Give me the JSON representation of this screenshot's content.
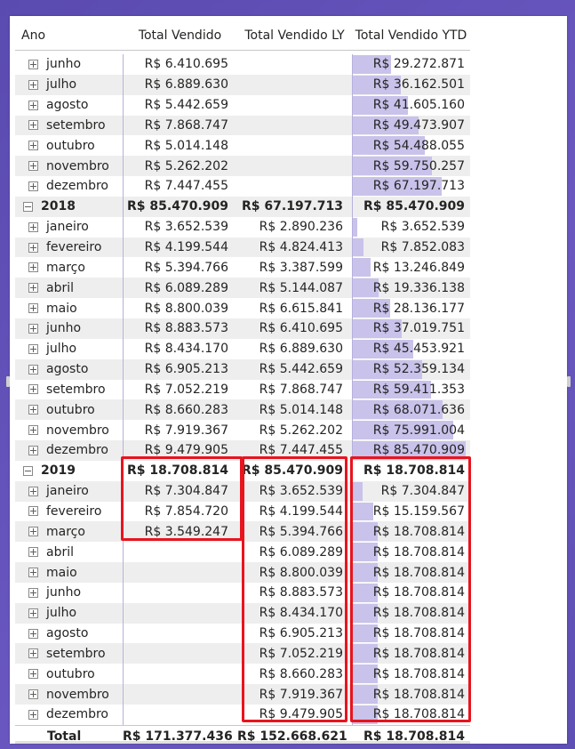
{
  "headers": [
    "Ano",
    "Total Vendido",
    "Total Vendido LY",
    "Total Vendido YTD"
  ],
  "ytd_bar_max": 85470909,
  "rows": [
    {
      "label": "junho",
      "level": 1,
      "tv": "R$ 6.410.695",
      "ly": "",
      "ytd": "R$ 29.272.871",
      "ytd_value": 29272871
    },
    {
      "label": "julho",
      "level": 1,
      "tv": "R$ 6.889.630",
      "ly": "",
      "ytd": "R$ 36.162.501",
      "ytd_value": 36162501
    },
    {
      "label": "agosto",
      "level": 1,
      "tv": "R$ 5.442.659",
      "ly": "",
      "ytd": "R$ 41.605.160",
      "ytd_value": 41605160
    },
    {
      "label": "setembro",
      "level": 1,
      "tv": "R$ 7.868.747",
      "ly": "",
      "ytd": "R$ 49.473.907",
      "ytd_value": 49473907
    },
    {
      "label": "outubro",
      "level": 1,
      "tv": "R$ 5.014.148",
      "ly": "",
      "ytd": "R$ 54.488.055",
      "ytd_value": 54488055
    },
    {
      "label": "novembro",
      "level": 1,
      "tv": "R$ 5.262.202",
      "ly": "",
      "ytd": "R$ 59.750.257",
      "ytd_value": 59750257
    },
    {
      "label": "dezembro",
      "level": 1,
      "tv": "R$ 7.447.455",
      "ly": "",
      "ytd": "R$ 67.197.713",
      "ytd_value": 67197713
    },
    {
      "label": "2018",
      "level": 0,
      "tv": "R$ 85.470.909",
      "ly": "R$ 67.197.713",
      "ytd": "R$ 85.470.909",
      "ytd_value": 0
    },
    {
      "label": "janeiro",
      "level": 1,
      "tv": "R$ 3.652.539",
      "ly": "R$ 2.890.236",
      "ytd": "R$ 3.652.539",
      "ytd_value": 3652539
    },
    {
      "label": "fevereiro",
      "level": 1,
      "tv": "R$ 4.199.544",
      "ly": "R$ 4.824.413",
      "ytd": "R$ 7.852.083",
      "ytd_value": 7852083
    },
    {
      "label": "março",
      "level": 1,
      "tv": "R$ 5.394.766",
      "ly": "R$ 3.387.599",
      "ytd": "R$ 13.246.849",
      "ytd_value": 13246849
    },
    {
      "label": "abril",
      "level": 1,
      "tv": "R$ 6.089.289",
      "ly": "R$ 5.144.087",
      "ytd": "R$ 19.336.138",
      "ytd_value": 19336138
    },
    {
      "label": "maio",
      "level": 1,
      "tv": "R$ 8.800.039",
      "ly": "R$ 6.615.841",
      "ytd": "R$ 28.136.177",
      "ytd_value": 28136177
    },
    {
      "label": "junho",
      "level": 1,
      "tv": "R$ 8.883.573",
      "ly": "R$ 6.410.695",
      "ytd": "R$ 37.019.751",
      "ytd_value": 37019751
    },
    {
      "label": "julho",
      "level": 1,
      "tv": "R$ 8.434.170",
      "ly": "R$ 6.889.630",
      "ytd": "R$ 45.453.921",
      "ytd_value": 45453921
    },
    {
      "label": "agosto",
      "level": 1,
      "tv": "R$ 6.905.213",
      "ly": "R$ 5.442.659",
      "ytd": "R$ 52.359.134",
      "ytd_value": 52359134
    },
    {
      "label": "setembro",
      "level": 1,
      "tv": "R$ 7.052.219",
      "ly": "R$ 7.868.747",
      "ytd": "R$ 59.411.353",
      "ytd_value": 59411353
    },
    {
      "label": "outubro",
      "level": 1,
      "tv": "R$ 8.660.283",
      "ly": "R$ 5.014.148",
      "ytd": "R$ 68.071.636",
      "ytd_value": 68071636
    },
    {
      "label": "novembro",
      "level": 1,
      "tv": "R$ 7.919.367",
      "ly": "R$ 5.262.202",
      "ytd": "R$ 75.991.004",
      "ytd_value": 75991004
    },
    {
      "label": "dezembro",
      "level": 1,
      "tv": "R$ 9.479.905",
      "ly": "R$ 7.447.455",
      "ytd": "R$ 85.470.909",
      "ytd_value": 85470909
    },
    {
      "label": "2019",
      "level": 0,
      "tv": "R$ 18.708.814",
      "ly": "R$ 85.470.909",
      "ytd": "R$ 18.708.814",
      "ytd_value": 0
    },
    {
      "label": "janeiro",
      "level": 1,
      "tv": "R$ 7.304.847",
      "ly": "R$ 3.652.539",
      "ytd": "R$ 7.304.847",
      "ytd_value": 7304847
    },
    {
      "label": "fevereiro",
      "level": 1,
      "tv": "R$ 7.854.720",
      "ly": "R$ 4.199.544",
      "ytd": "R$ 15.159.567",
      "ytd_value": 15159567
    },
    {
      "label": "março",
      "level": 1,
      "tv": "R$ 3.549.247",
      "ly": "R$ 5.394.766",
      "ytd": "R$ 18.708.814",
      "ytd_value": 18708814
    },
    {
      "label": "abril",
      "level": 1,
      "tv": "",
      "ly": "R$ 6.089.289",
      "ytd": "R$ 18.708.814",
      "ytd_value": 18708814
    },
    {
      "label": "maio",
      "level": 1,
      "tv": "",
      "ly": "R$ 8.800.039",
      "ytd": "R$ 18.708.814",
      "ytd_value": 18708814
    },
    {
      "label": "junho",
      "level": 1,
      "tv": "",
      "ly": "R$ 8.883.573",
      "ytd": "R$ 18.708.814",
      "ytd_value": 18708814
    },
    {
      "label": "julho",
      "level": 1,
      "tv": "",
      "ly": "R$ 8.434.170",
      "ytd": "R$ 18.708.814",
      "ytd_value": 18708814
    },
    {
      "label": "agosto",
      "level": 1,
      "tv": "",
      "ly": "R$ 6.905.213",
      "ytd": "R$ 18.708.814",
      "ytd_value": 18708814
    },
    {
      "label": "setembro",
      "level": 1,
      "tv": "",
      "ly": "R$ 7.052.219",
      "ytd": "R$ 18.708.814",
      "ytd_value": 18708814
    },
    {
      "label": "outubro",
      "level": 1,
      "tv": "",
      "ly": "R$ 8.660.283",
      "ytd": "R$ 18.708.814",
      "ytd_value": 18708814
    },
    {
      "label": "novembro",
      "level": 1,
      "tv": "",
      "ly": "R$ 7.919.367",
      "ytd": "R$ 18.708.814",
      "ytd_value": 18708814
    },
    {
      "label": "dezembro",
      "level": 1,
      "tv": "",
      "ly": "R$ 9.479.905",
      "ytd": "R$ 18.708.814",
      "ytd_value": 18708814
    }
  ],
  "total": {
    "label": "Total",
    "tv": "R$ 171.377.436",
    "ly": "R$ 152.668.621",
    "ytd": "R$ 18.708.814"
  },
  "colors": {
    "bar": "#c9c2ea",
    "highlight": "#e8141e",
    "shade": "#eeeeee"
  },
  "icons": {
    "expand": "plus-box-icon",
    "collapse": "minus-box-icon"
  }
}
